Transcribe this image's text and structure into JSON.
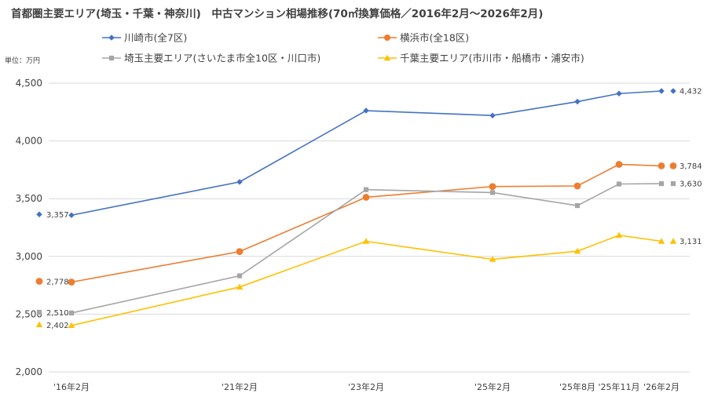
{
  "chart_data": {
    "type": "line",
    "title": "首都圏主要エリア(埼玉・千葉・神奈川)　中古マンション相場推移(70㎡換算価格／2016年2月～2026年2月)",
    "unit_label": "単位：万円",
    "xlabel": "",
    "ylabel": "",
    "categories": [
      "'16年2月",
      "'21年2月",
      "'23年2月",
      "'25年2月",
      "'25年8月",
      "'25年11月",
      "'26年2月"
    ],
    "x_values": [
      2016.083,
      2021.083,
      2023.083,
      2025.083,
      2025.583,
      2025.833,
      2026.083
    ],
    "ylim": [
      2000,
      4500
    ],
    "yticks": [
      2000,
      2500,
      3000,
      3500,
      4000,
      4500
    ],
    "ytick_labels": [
      "2,000",
      "2,500",
      "3,000",
      "3,500",
      "4,000",
      "4,500"
    ],
    "grid": true,
    "legend_position": "top",
    "series": [
      {
        "name": "川崎市(全7区)",
        "color": "#4472C4",
        "marker": "diamond",
        "values": [
          3357,
          3645,
          4262,
          4220,
          4340,
          4410,
          4432
        ],
        "start_label": "3,357",
        "end_label": "4,432"
      },
      {
        "name": "横浜市(全18区)",
        "color": "#ED7D31",
        "marker": "circle",
        "values": [
          2778,
          3042,
          3512,
          3605,
          3610,
          3797,
          3784
        ],
        "start_label": "2,778",
        "end_label": "3,784"
      },
      {
        "name": "埼玉主要エリア(さいたま市全10区・川口市)",
        "color": "#A5A5A5",
        "marker": "square",
        "values": [
          2510,
          2832,
          3578,
          3553,
          3440,
          3627,
          3630
        ],
        "start_label": "2,510",
        "end_label": "3,630"
      },
      {
        "name": "千葉主要エリア(市川市・船橋市・浦安市)",
        "color": "#FFC000",
        "marker": "triangle",
        "values": [
          2402,
          2735,
          3131,
          2975,
          3045,
          3183,
          3131
        ],
        "start_label": "2,402",
        "end_label": "3,131"
      }
    ]
  }
}
